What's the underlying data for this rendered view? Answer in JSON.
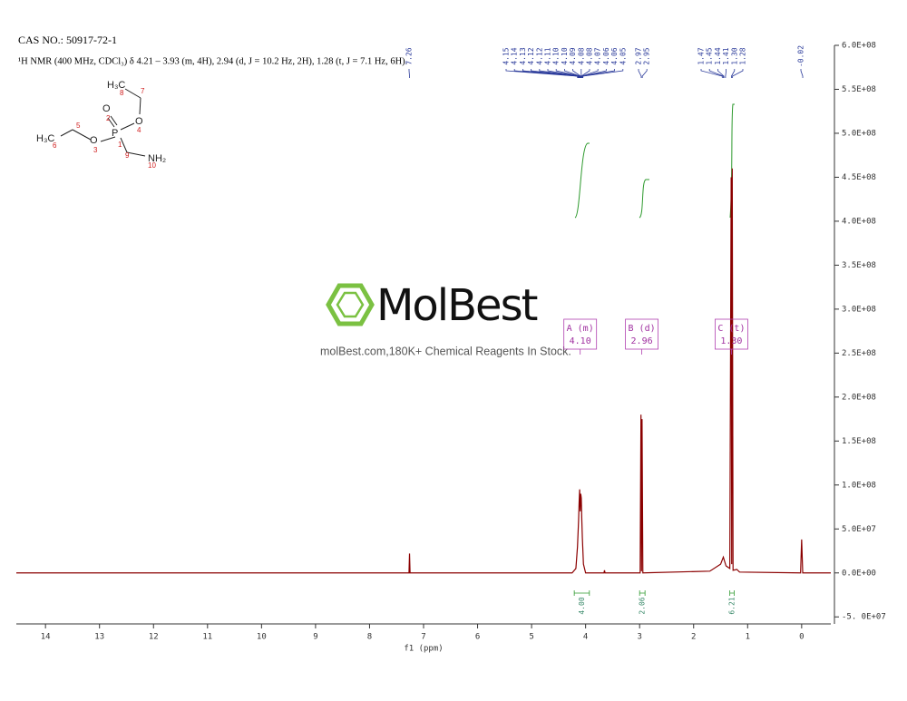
{
  "chart_data": {
    "type": "line",
    "title": "CAS NO.: 50917-72-1",
    "subtitle": "¹H NMR (400 MHz, CDCl₃) δ 4.21 – 3.93 (m, 4H), 2.94 (d, J = 10.2 Hz, 2H), 1.28 (t, J = 7.1 Hz, 6H).",
    "x_label": "f1 (ppm)",
    "watermark": {
      "brand": "MolBest",
      "text": "molBest.com,180K+ Chemical Reagents In Stock."
    },
    "molecule": {
      "labels": [
        "H₃C",
        "O",
        "O",
        "P",
        "O",
        "H₃C",
        "NH₂"
      ],
      "numbers": [
        8,
        7,
        2,
        4,
        1,
        5,
        3,
        6,
        9,
        10
      ]
    },
    "x": [
      14.54,
      7.3,
      7.27,
      7.26,
      7.25,
      4.25,
      4.18,
      4.15,
      4.13,
      4.12,
      4.11,
      4.1,
      4.09,
      4.08,
      4.07,
      4.06,
      4.04,
      4.0,
      3.66,
      3.65,
      3.64,
      2.99,
      2.975,
      2.965,
      2.955,
      2.94,
      1.7,
      1.5,
      1.45,
      1.4,
      1.33,
      1.305,
      1.295,
      1.285,
      1.27,
      1.2,
      1.15,
      0.02,
      0,
      -0.02,
      -0.54
    ],
    "series": [
      {
        "name": "spectrum",
        "color": "#8b0000",
        "values": [
          0,
          0,
          0,
          22000000,
          0,
          0,
          5000000,
          30000000,
          60000000,
          80000000,
          95000000,
          70000000,
          90000000,
          85000000,
          60000000,
          40000000,
          10000000,
          0,
          0,
          3000000,
          0,
          0,
          180000000,
          2000000,
          175000000,
          0,
          2000000,
          10000000,
          18000000,
          8000000,
          5000000,
          450000000,
          10000000,
          460000000,
          3000000,
          4000000,
          1000000,
          0,
          38000000,
          0,
          0
        ]
      }
    ],
    "xlim": [
      14.54,
      -0.54
    ],
    "xticks": [
      14,
      13,
      12,
      11,
      10,
      9,
      8,
      7,
      6,
      5,
      4,
      3,
      2,
      1,
      0
    ],
    "ylim": [
      -58000000,
      600000000
    ],
    "yticks": [
      {
        "value": -50000000,
        "label": "-5. 0E+07"
      },
      {
        "value": 0,
        "label": "0.0E+00"
      },
      {
        "value": 50000000,
        "label": "5.0E+07"
      },
      {
        "value": 100000000,
        "label": "1.0E+08"
      },
      {
        "value": 150000000,
        "label": "1.5E+08"
      },
      {
        "value": 200000000,
        "label": "2.0E+08"
      },
      {
        "value": 250000000,
        "label": "2.5E+08"
      },
      {
        "value": 300000000,
        "label": "3.0E+08"
      },
      {
        "value": 350000000,
        "label": "3.5E+08"
      },
      {
        "value": 400000000,
        "label": "4.0E+08"
      },
      {
        "value": 450000000,
        "label": "4.5E+08"
      },
      {
        "value": 500000000,
        "label": "5.0E+08"
      },
      {
        "value": 550000000,
        "label": "5.5E+08"
      },
      {
        "value": 600000000,
        "label": "6.0E+08"
      }
    ],
    "peak_labels": [
      7.26,
      4.15,
      4.14,
      4.13,
      4.12,
      4.12,
      4.11,
      {
        "value": 4.1,
        "label": "4.10"
      },
      {
        "value": 4.1,
        "label": "4.10"
      },
      4.09,
      4.08,
      4.08,
      4.07,
      4.06,
      4.06,
      4.05,
      2.97,
      2.95,
      1.47,
      1.45,
      1.44,
      1.41,
      {
        "value": 1.3,
        "label": "1.30"
      },
      1.28,
      -0.02
    ],
    "multiplets": [
      {
        "name": "A (m)",
        "shift": {
          "value": 4.1,
          "label": "4.10"
        }
      },
      {
        "name": "B (d)",
        "shift": 2.96
      },
      {
        "name": "C (t)",
        "shift": {
          "value": 1.3,
          "label": "1.30"
        }
      }
    ],
    "integrals": [
      {
        "from": 4.21,
        "to": 3.93,
        "value": {
          "value": 4,
          "label": "4.00"
        }
      },
      {
        "from": 3.0,
        "to": 2.9,
        "value": 2.06
      },
      {
        "from": 1.33,
        "to": 1.25,
        "value": 6.21
      }
    ]
  }
}
